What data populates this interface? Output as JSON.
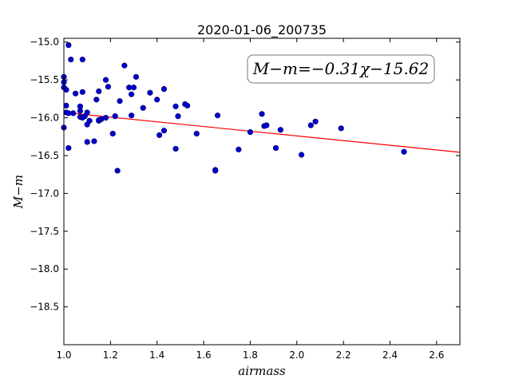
{
  "chart_data": {
    "type": "scatter",
    "title": "2020-01-06_200735",
    "xlabel": "airmass",
    "ylabel": "M−m",
    "xlim": [
      1.0,
      2.7
    ],
    "ylim": [
      -19.0,
      -14.95
    ],
    "y_inverted": true,
    "grid": false,
    "xticks": [
      1.0,
      1.2,
      1.4,
      1.6,
      1.8,
      2.0,
      2.2,
      2.4,
      2.6
    ],
    "xtick_labels": [
      "1.0",
      "1.2",
      "1.4",
      "1.6",
      "1.8",
      "2.0",
      "2.2",
      "2.4",
      "2.6"
    ],
    "yticks": [
      -15.0,
      -15.5,
      -16.0,
      -16.5,
      -17.0,
      -17.5,
      -18.0,
      -18.5
    ],
    "ytick_labels": [
      "−15.0",
      "−15.5",
      "−16.0",
      "−16.5",
      "−17.0",
      "−17.5",
      "−18.0",
      "−18.5"
    ],
    "annotation": "M−m=−0.31χ−15.62",
    "fit_line": {
      "slope": -0.31,
      "intercept": -15.62,
      "color": "#ff0000"
    },
    "point_color": "#0000cc",
    "series": [
      {
        "x": [
          1.0,
          1.0,
          1.0,
          1.01,
          1.01,
          1.0,
          1.01,
          1.02,
          1.02,
          1.02,
          1.03,
          1.04,
          1.05,
          1.07,
          1.07,
          1.07,
          1.08,
          1.08,
          1.08,
          1.09,
          1.1,
          1.1,
          1.1,
          1.11,
          1.13,
          1.14,
          1.15,
          1.15,
          1.15,
          1.16,
          1.18,
          1.18,
          1.19,
          1.21,
          1.22,
          1.23,
          1.24,
          1.26,
          1.28,
          1.29,
          1.29,
          1.3,
          1.31,
          1.34,
          1.37,
          1.4,
          1.41,
          1.43,
          1.43,
          1.48,
          1.48,
          1.49,
          1.52,
          1.53,
          1.57,
          1.65,
          1.65,
          1.66,
          1.75,
          1.8,
          1.85,
          1.86,
          1.87,
          1.91,
          1.93,
          2.02,
          2.06,
          2.08,
          2.19,
          2.46
        ],
        "y": [
          -15.46,
          -15.53,
          -15.6,
          -15.63,
          -15.84,
          -16.13,
          -15.93,
          -15.04,
          -15.94,
          -16.4,
          -15.23,
          -15.94,
          -15.68,
          -15.99,
          -15.85,
          -15.91,
          -15.23,
          -15.66,
          -16.0,
          -15.98,
          -15.93,
          -16.09,
          -16.32,
          -16.04,
          -16.31,
          -15.76,
          -15.65,
          -16.03,
          -16.04,
          -16.02,
          -15.5,
          -16.0,
          -15.59,
          -16.21,
          -15.98,
          -16.7,
          -15.78,
          -15.31,
          -15.6,
          -15.69,
          -15.97,
          -15.6,
          -15.46,
          -15.87,
          -15.67,
          -15.76,
          -16.23,
          -15.62,
          -16.17,
          -15.85,
          -16.41,
          -15.98,
          -15.82,
          -15.84,
          -16.21,
          -16.69,
          -16.7,
          -15.97,
          -16.42,
          -16.19,
          -15.95,
          -16.11,
          -16.1,
          -16.4,
          -16.16,
          -16.49,
          -16.1,
          -16.05,
          -16.14,
          -16.45
        ]
      }
    ]
  }
}
